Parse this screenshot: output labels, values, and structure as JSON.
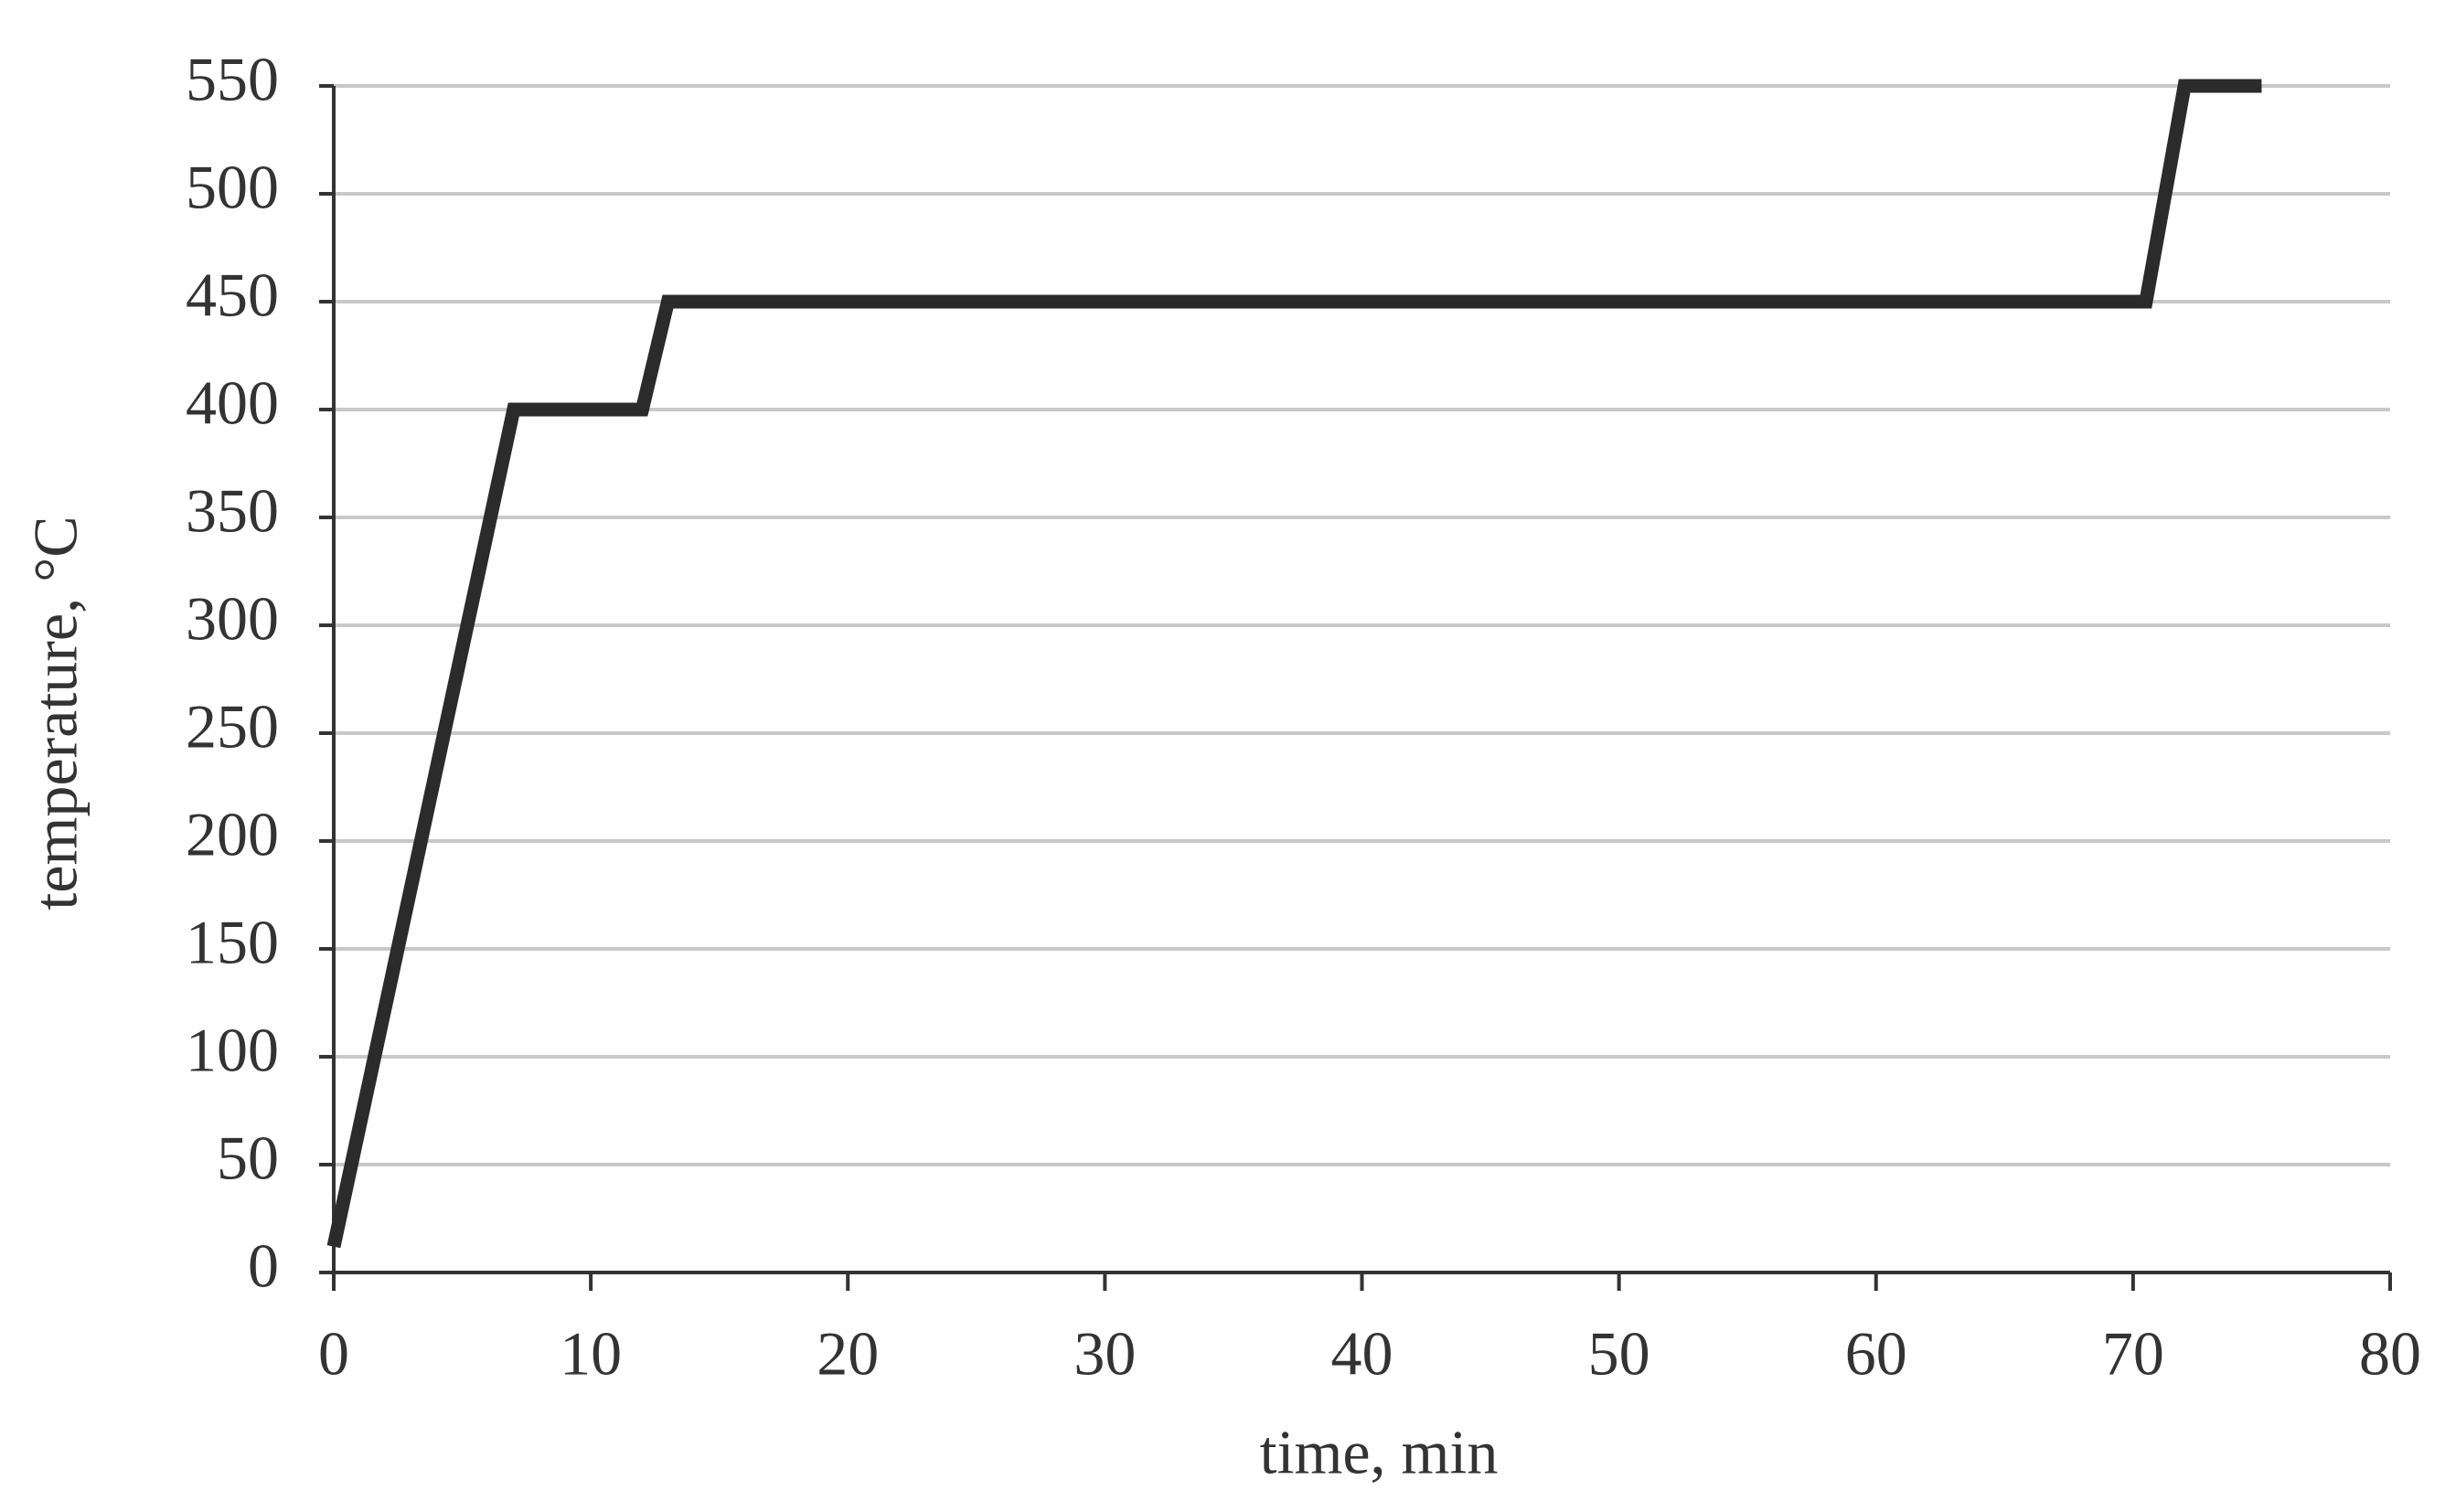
{
  "chart_data": {
    "type": "line",
    "xlabel": "time, min",
    "ylabel": "temperature, °C",
    "x": [
      0,
      7,
      12,
      13,
      70.5,
      72,
      75
    ],
    "values": [
      12,
      400,
      400,
      450,
      450,
      550,
      550
    ],
    "color": "#2b2b2b",
    "xlim": [
      0,
      80
    ],
    "xticks": [
      0,
      10,
      20,
      30,
      40,
      50,
      60,
      70,
      80
    ],
    "ylim": [
      0,
      550
    ],
    "yticks": [
      0,
      50,
      100,
      150,
      200,
      250,
      300,
      350,
      400,
      450,
      500,
      550
    ],
    "grid": true
  }
}
